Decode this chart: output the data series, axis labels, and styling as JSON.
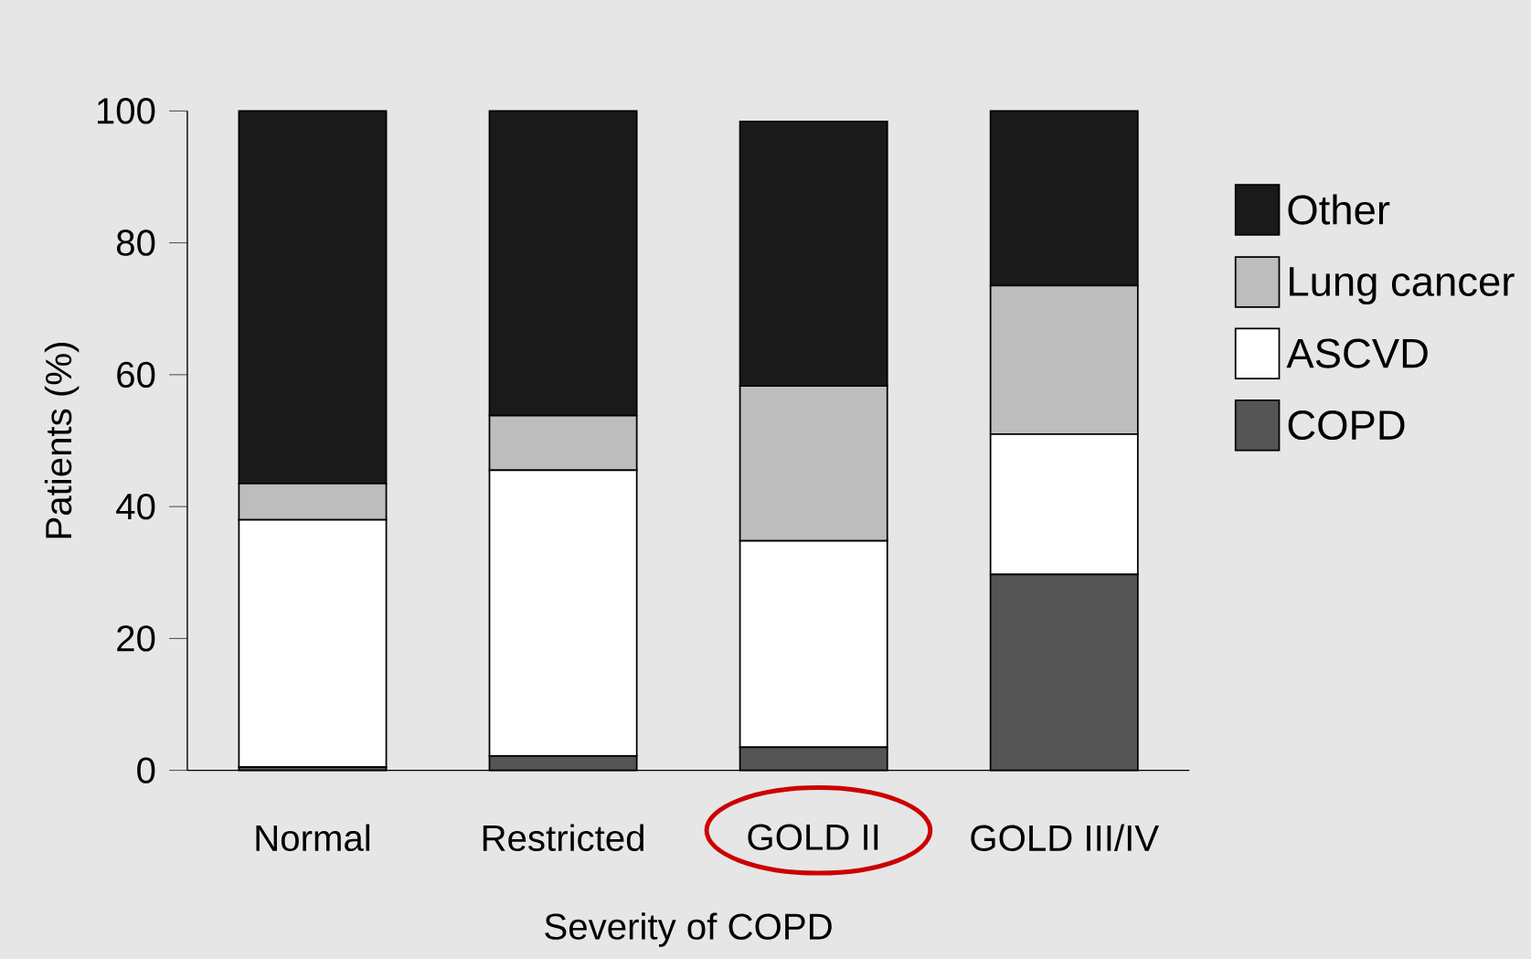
{
  "chart_data": {
    "type": "bar",
    "stacked": true,
    "xlabel": "Severity of COPD",
    "ylabel": "Patients (%)",
    "categories": [
      "Normal",
      "Restricted",
      "GOLD II",
      "GOLD III/IV"
    ],
    "series": [
      {
        "name": "COPD",
        "color": "#555555",
        "values": [
          0.5,
          2.2,
          3.5,
          29.7
        ]
      },
      {
        "name": "ASCVD",
        "color": "#ffffff",
        "values": [
          37.5,
          43.3,
          31.3,
          21.3
        ]
      },
      {
        "name": "Lung cancer",
        "color": "#bdbdbd",
        "values": [
          5.5,
          8.3,
          23.5,
          22.5
        ]
      },
      {
        "name": "Other",
        "color": "#1a1a1a",
        "values": [
          56.5,
          46.2,
          40.1,
          26.5
        ]
      }
    ],
    "ylim": [
      0,
      100
    ],
    "yticks": [
      0,
      20,
      40,
      60,
      80,
      100
    ],
    "grid": false,
    "legend": "right"
  }
}
